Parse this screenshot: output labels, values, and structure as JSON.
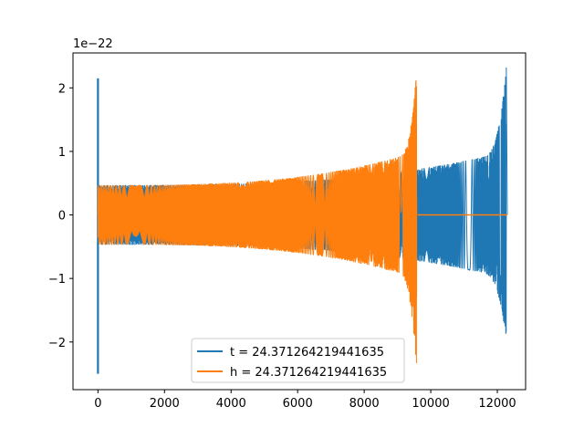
{
  "chart_data": {
    "type": "line",
    "title": "",
    "xlabel": "",
    "ylabel": "",
    "y_scale_label": "1e−22",
    "xlim": [
      -750,
      12850
    ],
    "ylim": [
      -2.75,
      2.55
    ],
    "x_ticks": [
      0,
      2000,
      4000,
      6000,
      8000,
      10000,
      12000
    ],
    "x_tick_labels": [
      "0",
      "2000",
      "4000",
      "6000",
      "8000",
      "10000",
      "12000"
    ],
    "y_ticks": [
      -2,
      -1,
      0,
      1,
      2
    ],
    "y_tick_labels": [
      "−2",
      "−1",
      "0",
      "1",
      "2"
    ],
    "grid": false,
    "legend_position": "bottom-center",
    "series": [
      {
        "name": "t = 24.371264219441635",
        "color": "#1f77b4",
        "envelope": {
          "glitch": {
            "x": 0,
            "min": -2.5,
            "max": 2.15
          },
          "start_x": 0,
          "end_x": 12300,
          "amp_start": 0.47,
          "amp_pre_peak": 1.0,
          "peak_max": 2.32,
          "peak_min": -1.98,
          "peak_x": 12270
        }
      },
      {
        "name": "h = 24.371264219441635",
        "color": "#ff7f0e",
        "envelope": {
          "start_x": 0,
          "end_x": 9600,
          "amp_start": 0.47,
          "amp_pre_peak": 1.0,
          "peak_max": 2.32,
          "peak_min": -2.52,
          "peak_x": 9580,
          "tail_end_x": 12300,
          "tail_value": 0
        }
      }
    ]
  }
}
